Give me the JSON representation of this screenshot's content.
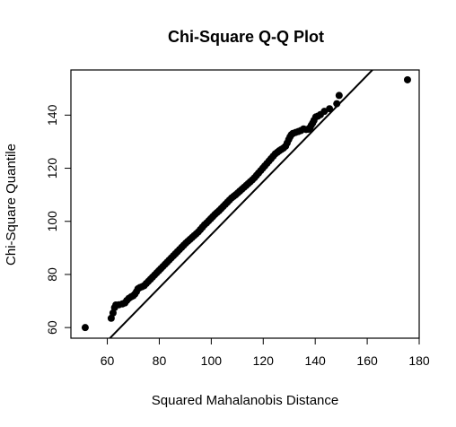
{
  "chart_data": {
    "type": "scatter",
    "title": "Chi-Square Q-Q Plot",
    "xlabel": "Squared Mahalanobis Distance",
    "ylabel": "Chi-Square Quantile",
    "xlim": [
      46,
      180
    ],
    "ylim": [
      56,
      157
    ],
    "xticks": [
      60,
      80,
      100,
      120,
      140,
      160,
      180
    ],
    "yticks": [
      60,
      80,
      100,
      120,
      140
    ],
    "grid": false,
    "reference_line": {
      "intercept": -5,
      "slope": 1
    },
    "points": [
      [
        51.5,
        60.0
      ],
      [
        61.5,
        63.5
      ],
      [
        62.2,
        65.5
      ],
      [
        62.8,
        67.5
      ],
      [
        63.3,
        68.5
      ],
      [
        64.5,
        68.6
      ],
      [
        65.8,
        68.9
      ],
      [
        66.8,
        69.3
      ],
      [
        67.5,
        70.2
      ],
      [
        68.3,
        71.0
      ],
      [
        69.2,
        71.6
      ],
      [
        70.0,
        72.0
      ],
      [
        70.6,
        72.6
      ],
      [
        71.2,
        73.5
      ],
      [
        71.8,
        74.6
      ],
      [
        72.6,
        75.1
      ],
      [
        73.4,
        75.4
      ],
      [
        74.2,
        75.8
      ],
      [
        75.0,
        76.6
      ],
      [
        75.8,
        77.4
      ],
      [
        76.6,
        78.2
      ],
      [
        77.4,
        79.0
      ],
      [
        78.2,
        79.8
      ],
      [
        79.0,
        80.6
      ],
      [
        79.8,
        81.4
      ],
      [
        80.6,
        82.2
      ],
      [
        81.4,
        83.0
      ],
      [
        82.2,
        83.8
      ],
      [
        83.0,
        84.6
      ],
      [
        83.8,
        85.4
      ],
      [
        84.6,
        86.2
      ],
      [
        85.4,
        87.0
      ],
      [
        86.2,
        87.8
      ],
      [
        87.0,
        88.6
      ],
      [
        87.8,
        89.4
      ],
      [
        88.6,
        90.2
      ],
      [
        89.4,
        91.0
      ],
      [
        90.2,
        91.8
      ],
      [
        91.0,
        92.5
      ],
      [
        91.8,
        93.2
      ],
      [
        92.6,
        93.9
      ],
      [
        93.4,
        94.6
      ],
      [
        94.2,
        95.3
      ],
      [
        95.0,
        96.0
      ],
      [
        95.8,
        96.9
      ],
      [
        96.6,
        97.8
      ],
      [
        97.4,
        98.7
      ],
      [
        98.2,
        99.4
      ],
      [
        99.0,
        100.2
      ],
      [
        99.8,
        101.0
      ],
      [
        100.6,
        101.8
      ],
      [
        101.4,
        102.6
      ],
      [
        102.2,
        103.3
      ],
      [
        103.0,
        104.0
      ],
      [
        103.8,
        104.8
      ],
      [
        104.6,
        105.6
      ],
      [
        105.4,
        106.4
      ],
      [
        106.2,
        107.2
      ],
      [
        107.0,
        108.0
      ],
      [
        107.8,
        108.8
      ],
      [
        108.6,
        109.4
      ],
      [
        109.4,
        110.0
      ],
      [
        110.2,
        110.7
      ],
      [
        111.0,
        111.4
      ],
      [
        111.8,
        112.1
      ],
      [
        112.6,
        112.8
      ],
      [
        113.4,
        113.5
      ],
      [
        114.2,
        114.2
      ],
      [
        115.0,
        114.9
      ],
      [
        115.8,
        115.6
      ],
      [
        116.6,
        116.4
      ],
      [
        117.4,
        117.3
      ],
      [
        118.2,
        118.2
      ],
      [
        119.0,
        119.1
      ],
      [
        119.8,
        120.0
      ],
      [
        120.6,
        120.9
      ],
      [
        121.4,
        121.8
      ],
      [
        122.2,
        122.7
      ],
      [
        123.0,
        123.6
      ],
      [
        123.8,
        124.5
      ],
      [
        124.6,
        125.4
      ],
      [
        125.4,
        126.0
      ],
      [
        126.2,
        126.6
      ],
      [
        127.0,
        127.1
      ],
      [
        127.8,
        127.6
      ],
      [
        128.6,
        128.3
      ],
      [
        129.2,
        129.5
      ],
      [
        129.8,
        130.8
      ],
      [
        130.3,
        131.8
      ],
      [
        130.8,
        132.6
      ],
      [
        131.4,
        133.1
      ],
      [
        132.5,
        133.5
      ],
      [
        133.5,
        133.8
      ],
      [
        134.5,
        134.2
      ],
      [
        135.5,
        134.8
      ],
      [
        136.5,
        134.6
      ],
      [
        137.4,
        134.7
      ],
      [
        138.0,
        135.3
      ],
      [
        138.5,
        136.2
      ],
      [
        139.0,
        137.0
      ],
      [
        139.5,
        138.0
      ],
      [
        140.2,
        139.3
      ],
      [
        141.0,
        139.6
      ],
      [
        142.0,
        140.2
      ],
      [
        143.5,
        141.4
      ],
      [
        145.5,
        142.4
      ],
      [
        148.3,
        144.3
      ],
      [
        149.2,
        147.4
      ],
      [
        175.5,
        153.3
      ]
    ]
  }
}
